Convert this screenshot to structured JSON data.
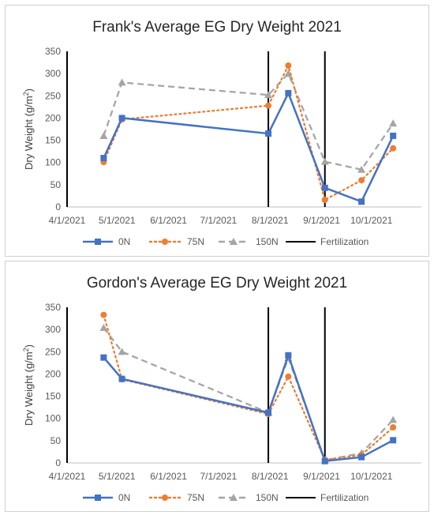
{
  "chart_data": [
    {
      "type": "line",
      "title": "Frank's Average EG Dry Weight 2021",
      "ylabel": "Dry Weight (g/m²)",
      "ylabel_base": "Dry Weight (g/m",
      "ylabel_sup": "2",
      "ylabel_close": ")",
      "ylim": [
        0,
        350
      ],
      "yticks": [
        0,
        50,
        100,
        150,
        200,
        250,
        300,
        350
      ],
      "xlim": [
        "2021-04-01",
        "2021-10-31"
      ],
      "xticks": [
        "2021-04-01",
        "2021-05-01",
        "2021-06-01",
        "2021-07-01",
        "2021-08-01",
        "2021-09-01",
        "2021-10-01"
      ],
      "xtick_labels": [
        "4/1/2021",
        "5/1/2021",
        "6/1/2021",
        "7/1/2021",
        "8/1/2021",
        "9/1/2021",
        "10/1/2021"
      ],
      "grid": false,
      "legend_position": "bottom",
      "series": [
        {
          "name": "0N",
          "color": "#4472c4",
          "style": "solid",
          "marker": "square",
          "x": [
            "2021-04-23",
            "2021-05-04",
            "2021-07-31",
            "2021-08-12",
            "2021-09-03",
            "2021-09-25",
            "2021-10-14"
          ],
          "y": [
            110,
            200,
            165,
            256,
            43,
            12,
            160
          ]
        },
        {
          "name": "75N",
          "color": "#ed7d31",
          "style": "dotted",
          "marker": "circle",
          "x": [
            "2021-04-23",
            "2021-05-04",
            "2021-07-31",
            "2021-08-12",
            "2021-09-03",
            "2021-09-25",
            "2021-10-14"
          ],
          "y": [
            101,
            197,
            228,
            318,
            16,
            60,
            132
          ]
        },
        {
          "name": "150N",
          "color": "#a5a5a5",
          "style": "dashed",
          "marker": "triangle",
          "x": [
            "2021-04-23",
            "2021-05-04",
            "2021-07-31",
            "2021-08-12",
            "2021-09-03",
            "2021-09-25",
            "2021-10-14"
          ],
          "y": [
            160,
            280,
            252,
            300,
            102,
            84,
            188
          ]
        }
      ],
      "fertilization": {
        "name": "Fertilization",
        "color": "#000000",
        "dates": [
          "2021-04-01",
          "2021-07-31",
          "2021-09-03"
        ]
      }
    },
    {
      "type": "line",
      "title": "Gordon's Average EG Dry Weight 2021",
      "ylabel": "Dry Weight (g/m²)",
      "ylabel_base": "Dry Weight (g/m",
      "ylabel_sup": "2",
      "ylabel_close": ")",
      "ylim": [
        0,
        350
      ],
      "yticks": [
        0,
        50,
        100,
        150,
        200,
        250,
        300,
        350
      ],
      "xlim": [
        "2021-04-01",
        "2021-10-31"
      ],
      "xticks": [
        "2021-04-01",
        "2021-05-01",
        "2021-06-01",
        "2021-07-01",
        "2021-08-01",
        "2021-09-01",
        "2021-10-01"
      ],
      "xtick_labels": [
        "4/1/2021",
        "5/1/2021",
        "6/1/2021",
        "7/1/2021",
        "8/1/2021",
        "9/1/2021",
        "10/1/2021"
      ],
      "grid": false,
      "legend_position": "bottom",
      "series": [
        {
          "name": "0N",
          "color": "#4472c4",
          "style": "solid",
          "marker": "square",
          "x": [
            "2021-04-23",
            "2021-05-04",
            "2021-07-31",
            "2021-08-12",
            "2021-09-03",
            "2021-09-25",
            "2021-10-14"
          ],
          "y": [
            237,
            189,
            113,
            242,
            4,
            13,
            51
          ]
        },
        {
          "name": "75N",
          "color": "#ed7d31",
          "style": "dotted",
          "marker": "circle",
          "x": [
            "2021-04-23",
            "2021-05-04",
            "2021-07-31",
            "2021-08-12",
            "2021-09-03",
            "2021-09-25",
            "2021-10-14"
          ],
          "y": [
            333,
            188,
            110,
            194,
            7,
            18,
            80
          ]
        },
        {
          "name": "150N",
          "color": "#a5a5a5",
          "style": "dashed",
          "marker": "triangle",
          "x": [
            "2021-04-23",
            "2021-05-04",
            "2021-07-31",
            "2021-08-12",
            "2021-09-03",
            "2021-09-25",
            "2021-10-14"
          ],
          "y": [
            304,
            250,
            113,
            236,
            6,
            22,
            97
          ]
        }
      ],
      "fertilization": {
        "name": "Fertilization",
        "color": "#000000",
        "dates": [
          "2021-04-01",
          "2021-07-31",
          "2021-09-03"
        ]
      }
    }
  ]
}
